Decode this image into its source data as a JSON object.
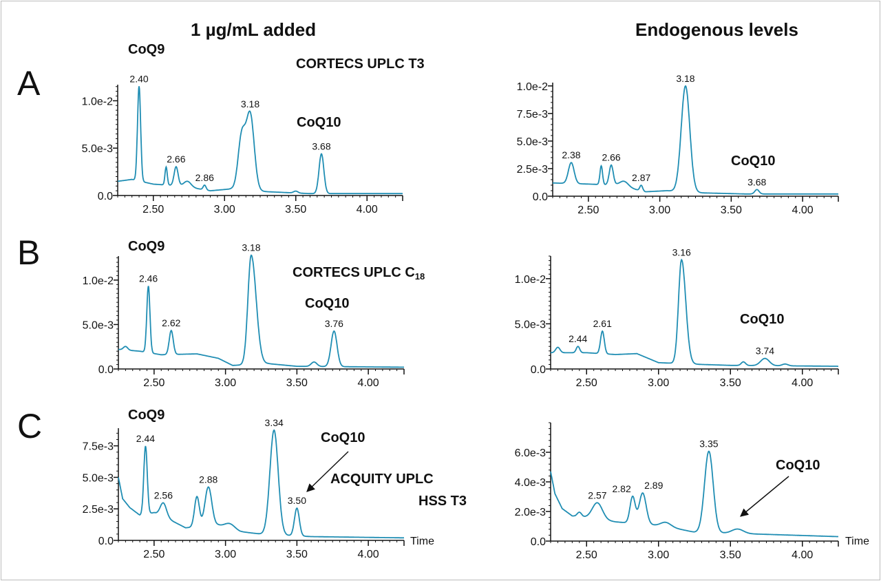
{
  "headers": {
    "left": "1 µg/mL added",
    "right": "Endogenous levels"
  },
  "panel_letters": [
    "A",
    "B",
    "C"
  ],
  "annotations": {
    "a_left_coq9": "CoQ9",
    "a_left_column": "CORTECS UPLC T3",
    "a_left_coq10": "CoQ10",
    "a_right_coq10": "CoQ10",
    "b_left_coq9": "CoQ9",
    "b_left_column": "CORTECS UPLC C",
    "b_left_column_sub": "18",
    "b_left_coq10": "CoQ10",
    "b_right_coq10": "CoQ10",
    "c_left_coq9": "CoQ9",
    "c_left_coq10": "CoQ10",
    "c_left_column_1": "ACQUITY UPLC",
    "c_left_column_2": "HSS T3",
    "c_right_coq10": "CoQ10",
    "time_label": "Time"
  },
  "line_color": "#1f8db3",
  "chart_data": [
    {
      "id": "a-left",
      "type": "line",
      "xlim": [
        2.25,
        4.25
      ],
      "xticks": [
        2.5,
        3.0,
        3.5,
        4.0
      ],
      "xtick_labels": [
        "2.50",
        "3.00",
        "3.50",
        "4.00"
      ],
      "yticks": [
        0,
        0.005,
        0.01
      ],
      "ytick_labels": [
        "0.0",
        "5.0e-3",
        "1.0e-2"
      ],
      "ymax": 0.0117,
      "yminor": 0.0005,
      "baseline": [
        [
          2.25,
          0.0015
        ],
        [
          2.35,
          0.0017
        ],
        [
          2.5,
          0.0012
        ],
        [
          2.7,
          0.001
        ],
        [
          2.9,
          0.0005
        ],
        [
          3.05,
          0.0007
        ],
        [
          3.3,
          0.0004
        ],
        [
          3.6,
          0.0002
        ],
        [
          4.25,
          0.0002
        ]
      ],
      "peaks": [
        {
          "rt": 2.4,
          "h": 0.01,
          "w": 0.011,
          "label": "2.40"
        },
        {
          "rt": 2.59,
          "h": 0.0019,
          "w": 0.008
        },
        {
          "rt": 2.66,
          "h": 0.002,
          "w": 0.014,
          "label": "2.66"
        },
        {
          "rt": 2.74,
          "h": 0.0006,
          "w": 0.025
        },
        {
          "rt": 2.86,
          "h": 0.0005,
          "w": 0.01,
          "label": "2.86"
        },
        {
          "rt": 3.12,
          "h": 0.0055,
          "w": 0.025
        },
        {
          "rt": 3.18,
          "h": 0.008,
          "w": 0.028,
          "label": "3.18"
        },
        {
          "rt": 3.5,
          "h": 0.0002,
          "w": 0.015
        },
        {
          "rt": 3.68,
          "h": 0.0042,
          "w": 0.017,
          "label": "3.68"
        }
      ]
    },
    {
      "id": "a-right",
      "type": "line",
      "xlim": [
        2.25,
        4.25
      ],
      "xticks": [
        2.5,
        3.0,
        3.5,
        4.0
      ],
      "xtick_labels": [
        "2.50",
        "3.00",
        "3.50",
        "4.00"
      ],
      "yticks": [
        0,
        0.0025,
        0.005,
        0.0075,
        0.01
      ],
      "ytick_labels": [
        "0.0",
        "2.5e-3",
        "5.0e-3",
        "7.5e-3",
        "1.0e-2"
      ],
      "ymax": 0.0103,
      "yminor": 0.0005,
      "baseline": [
        [
          2.25,
          0.0012
        ],
        [
          2.5,
          0.0011
        ],
        [
          2.7,
          0.001
        ],
        [
          2.9,
          0.0004
        ],
        [
          3.05,
          0.0005
        ],
        [
          3.3,
          0.0003
        ],
        [
          3.6,
          0.0002
        ],
        [
          4.25,
          0.0002
        ]
      ],
      "peaks": [
        {
          "rt": 2.38,
          "h": 0.0019,
          "w": 0.02,
          "label": "2.38"
        },
        {
          "rt": 2.59,
          "h": 0.0017,
          "w": 0.009
        },
        {
          "rt": 2.66,
          "h": 0.0018,
          "w": 0.014,
          "label": "2.66"
        },
        {
          "rt": 2.75,
          "h": 0.0005,
          "w": 0.03
        },
        {
          "rt": 2.87,
          "h": 0.0005,
          "w": 0.01,
          "label": "2.87"
        },
        {
          "rt": 3.18,
          "h": 0.0096,
          "w": 0.03,
          "label": "3.18"
        },
        {
          "rt": 3.68,
          "h": 0.0004,
          "w": 0.015,
          "label": "3.68"
        }
      ]
    },
    {
      "id": "b-left",
      "type": "line",
      "xlim": [
        2.25,
        4.25
      ],
      "xticks": [
        2.5,
        3.0,
        3.5,
        4.0
      ],
      "xtick_labels": [
        "2.50",
        "3.00",
        "3.50",
        "4.00"
      ],
      "yticks": [
        0,
        0.005,
        0.01
      ],
      "ytick_labels": [
        "0.0",
        "5.0e-3",
        "1.0e-2"
      ],
      "ymax": 0.0127,
      "yminor": 0.0005,
      "baseline": [
        [
          2.25,
          0.0022
        ],
        [
          2.4,
          0.002
        ],
        [
          2.55,
          0.0016
        ],
        [
          2.8,
          0.0017
        ],
        [
          2.95,
          0.0012
        ],
        [
          3.05,
          0.0004
        ],
        [
          3.3,
          0.0006
        ],
        [
          3.5,
          0.0003
        ],
        [
          4.25,
          0.0002
        ]
      ],
      "peaks": [
        {
          "rt": 2.3,
          "h": 0.0004,
          "w": 0.015
        },
        {
          "rt": 2.46,
          "h": 0.0075,
          "w": 0.011,
          "label": "2.46"
        },
        {
          "rt": 2.62,
          "h": 0.0027,
          "w": 0.014,
          "label": "2.62"
        },
        {
          "rt": 3.18,
          "h": 0.0123,
          "w": 0.023,
          "tail": 1.5,
          "label": "3.18"
        },
        {
          "rt": 3.62,
          "h": 0.0005,
          "w": 0.02
        },
        {
          "rt": 3.76,
          "h": 0.004,
          "w": 0.021,
          "label": "3.76"
        }
      ]
    },
    {
      "id": "b-right",
      "type": "line",
      "xlim": [
        2.25,
        4.25
      ],
      "xticks": [
        2.5,
        3.0,
        3.5,
        4.0
      ],
      "xtick_labels": [
        "2.50",
        "3.00",
        "3.50",
        "4.00"
      ],
      "yticks": [
        0,
        0.005,
        0.01
      ],
      "ytick_labels": [
        "0.0",
        "5.0e-3",
        "1.0e-2"
      ],
      "ymax": 0.0125,
      "yminor": 0.0005,
      "baseline": [
        [
          2.25,
          0.0018
        ],
        [
          2.5,
          0.0018
        ],
        [
          2.7,
          0.0016
        ],
        [
          2.85,
          0.0017
        ],
        [
          3.0,
          0.0007
        ],
        [
          3.3,
          0.0005
        ],
        [
          3.5,
          0.0004
        ],
        [
          4.25,
          0.0003
        ]
      ],
      "peaks": [
        {
          "rt": 2.3,
          "h": 0.0006,
          "w": 0.015
        },
        {
          "rt": 2.44,
          "h": 0.0007,
          "w": 0.012,
          "label": "2.44"
        },
        {
          "rt": 2.61,
          "h": 0.0025,
          "w": 0.013,
          "label": "2.61"
        },
        {
          "rt": 3.16,
          "h": 0.0115,
          "w": 0.021,
          "tail": 1.4,
          "label": "3.16"
        },
        {
          "rt": 3.59,
          "h": 0.0004,
          "w": 0.015
        },
        {
          "rt": 3.74,
          "h": 0.0008,
          "w": 0.03,
          "label": "3.74"
        },
        {
          "rt": 3.88,
          "h": 0.0002,
          "w": 0.02
        }
      ]
    },
    {
      "id": "c-left",
      "type": "line",
      "xlim": [
        2.25,
        4.25
      ],
      "xticks": [
        2.5,
        3.0,
        3.5,
        4.0
      ],
      "xtick_labels": [
        "2.50",
        "3.00",
        "3.50",
        "4.00"
      ],
      "yticks": [
        0,
        0.0025,
        0.005,
        0.0075
      ],
      "ytick_labels": [
        "0.0",
        "2.5e-3",
        "5.0e-3",
        "7.5e-3"
      ],
      "ymax": 0.0089,
      "yminor": 0.0005,
      "baseline": [
        [
          2.25,
          0.005
        ],
        [
          2.28,
          0.0033
        ],
        [
          2.33,
          0.0026
        ],
        [
          2.4,
          0.002
        ],
        [
          2.5,
          0.0022
        ],
        [
          2.6,
          0.0017
        ],
        [
          2.72,
          0.001
        ],
        [
          2.95,
          0.0012
        ],
        [
          3.1,
          0.0007
        ],
        [
          3.25,
          0.0005
        ],
        [
          3.6,
          0.0003
        ],
        [
          4.25,
          0.0002
        ]
      ],
      "peaks": [
        {
          "rt": 2.44,
          "h": 0.0054,
          "w": 0.012,
          "label": "2.44"
        },
        {
          "rt": 2.565,
          "h": 0.0011,
          "w": 0.022,
          "label": "2.56"
        },
        {
          "rt": 2.8,
          "h": 0.0024,
          "w": 0.017
        },
        {
          "rt": 2.88,
          "h": 0.0031,
          "w": 0.024,
          "label": "2.88"
        },
        {
          "rt": 3.03,
          "h": 0.0004,
          "w": 0.035
        },
        {
          "rt": 3.34,
          "h": 0.0083,
          "w": 0.029,
          "label": "3.34"
        },
        {
          "rt": 3.5,
          "h": 0.0022,
          "w": 0.017,
          "label": "3.50"
        }
      ]
    },
    {
      "id": "c-right",
      "type": "line",
      "xlim": [
        2.25,
        4.25
      ],
      "xticks": [
        2.5,
        3.0,
        3.5,
        4.0
      ],
      "xtick_labels": [
        "2.50",
        "3.00",
        "3.50",
        "4.00"
      ],
      "yticks": [
        0,
        0.002,
        0.004,
        0.006
      ],
      "ytick_labels": [
        "0.0",
        "2.0e-3",
        "4.0e-3",
        "6.0e-3"
      ],
      "ymax": 0.008,
      "yminor": 0.0004,
      "baseline": [
        [
          2.25,
          0.0047
        ],
        [
          2.28,
          0.0032
        ],
        [
          2.33,
          0.0022
        ],
        [
          2.4,
          0.0017
        ],
        [
          2.5,
          0.0016
        ],
        [
          2.7,
          0.0013
        ],
        [
          2.95,
          0.0011
        ],
        [
          3.1,
          0.0009
        ],
        [
          3.25,
          0.0006
        ],
        [
          3.6,
          0.0005
        ],
        [
          4.25,
          0.0003
        ]
      ],
      "peaks": [
        {
          "rt": 2.45,
          "h": 0.0003,
          "w": 0.015
        },
        {
          "rt": 2.575,
          "h": 0.0011,
          "w": 0.035,
          "label": "2.57"
        },
        {
          "rt": 2.82,
          "h": 0.0018,
          "w": 0.018,
          "label": "2.82"
        },
        {
          "rt": 2.89,
          "h": 0.0021,
          "w": 0.024,
          "label": "2.89"
        },
        {
          "rt": 3.05,
          "h": 0.0003,
          "w": 0.035
        },
        {
          "rt": 3.35,
          "h": 0.0055,
          "w": 0.03,
          "label": "3.35"
        },
        {
          "rt": 3.55,
          "h": 0.0003,
          "w": 0.04
        }
      ]
    }
  ]
}
